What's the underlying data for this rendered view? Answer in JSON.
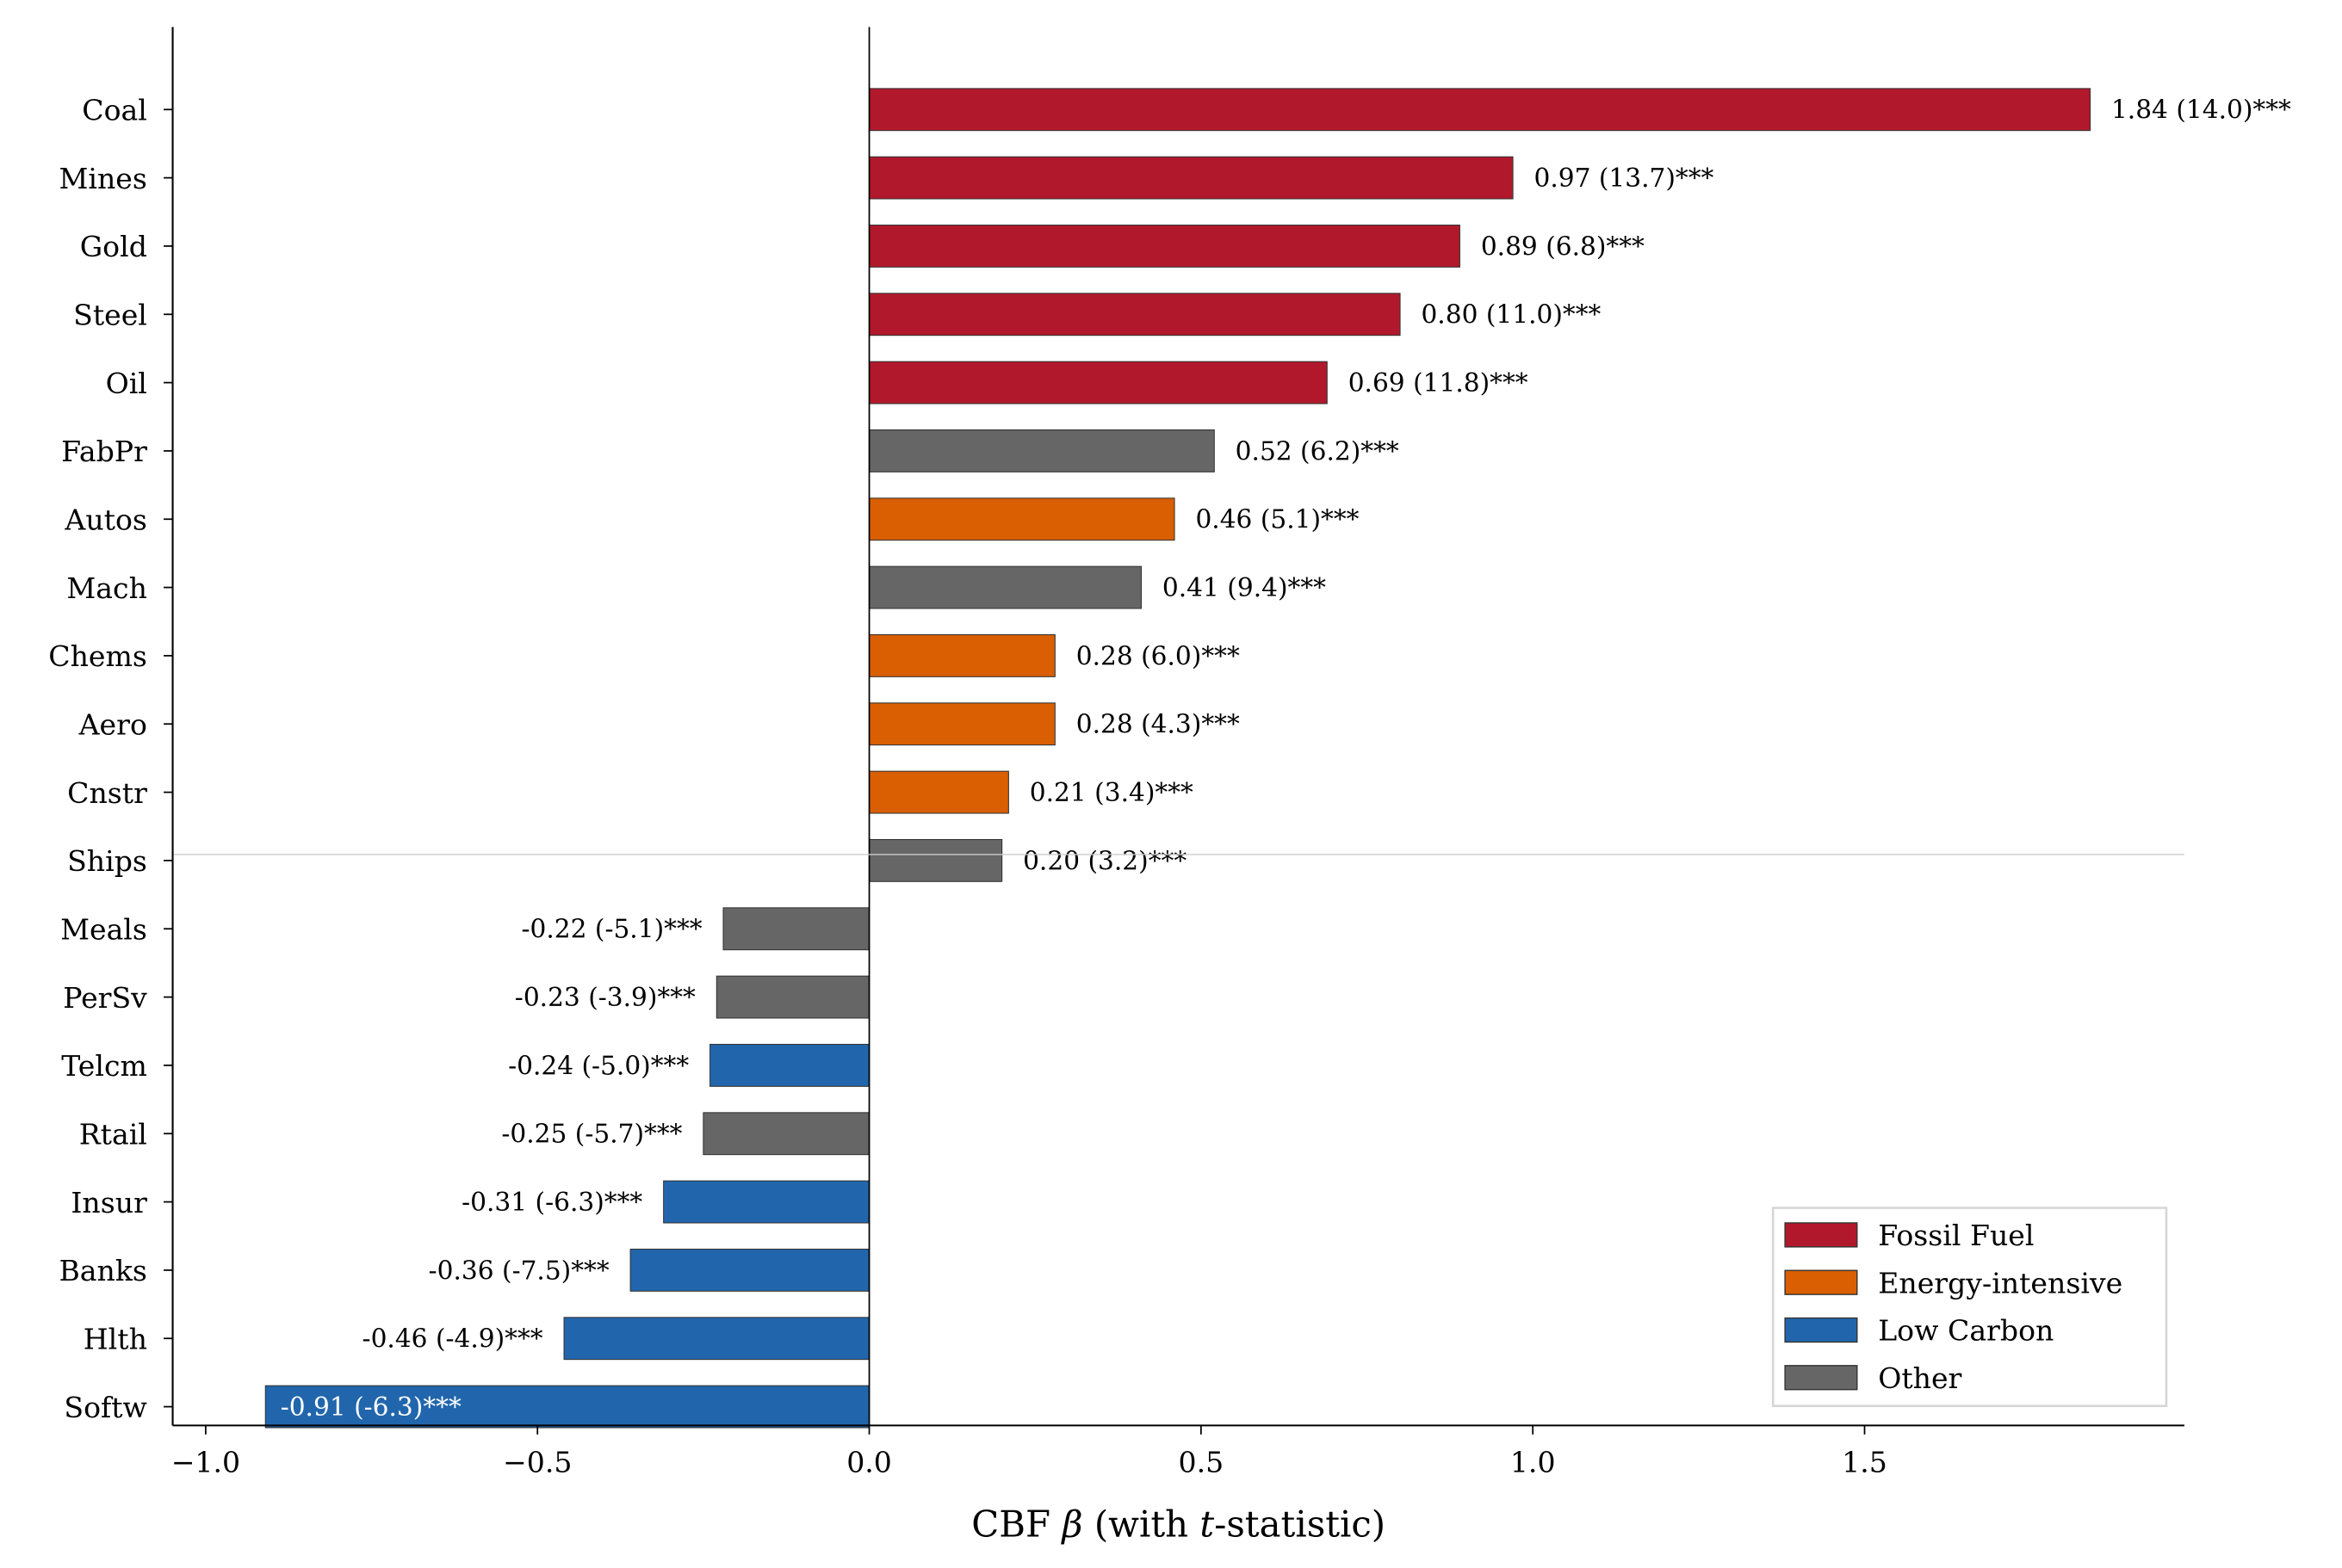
{
  "chart_data": {
    "type": "bar",
    "orientation": "horizontal",
    "title": "",
    "xlabel_parts": [
      "CBF ",
      "β",
      " (with ",
      "t",
      "-statistic)"
    ],
    "ylabel": "",
    "xlim": [
      -1.05,
      1.95
    ],
    "xticks": [
      -1.0,
      -0.5,
      0.0,
      0.5,
      1.0,
      1.5
    ],
    "xtick_labels": [
      "−1.0",
      "−0.5",
      "0.0",
      "0.5",
      "1.0",
      "1.5"
    ],
    "grid": false,
    "legend_position": "bottom-right",
    "categories": [
      "Coal",
      "Mines",
      "Gold",
      "Steel",
      "Oil",
      "FabPr",
      "Autos",
      "Mach",
      "Chems",
      "Aero",
      "Cnstr",
      "Ships",
      "Meals",
      "PerSv",
      "Telcm",
      "Rtail",
      "Insur",
      "Banks",
      "Hlth",
      "Softw"
    ],
    "values": [
      1.84,
      0.97,
      0.89,
      0.8,
      0.69,
      0.52,
      0.46,
      0.41,
      0.28,
      0.28,
      0.21,
      0.2,
      -0.22,
      -0.23,
      -0.24,
      -0.25,
      -0.31,
      -0.36,
      -0.46,
      -0.91
    ],
    "t_stats": [
      14.0,
      13.7,
      6.8,
      11.0,
      11.8,
      6.2,
      5.1,
      9.4,
      6.0,
      4.3,
      3.4,
      3.2,
      -5.1,
      -3.9,
      -5.0,
      -5.7,
      -6.3,
      -7.5,
      -4.9,
      -6.3
    ],
    "groups": [
      "Fossil Fuel",
      "Fossil Fuel",
      "Fossil Fuel",
      "Fossil Fuel",
      "Fossil Fuel",
      "Other",
      "Energy-intensive",
      "Other",
      "Energy-intensive",
      "Energy-intensive",
      "Energy-intensive",
      "Other",
      "Other",
      "Other",
      "Low Carbon",
      "Other",
      "Low Carbon",
      "Low Carbon",
      "Low Carbon",
      "Low Carbon"
    ],
    "data_labels": [
      "1.84 (14.0)***",
      "0.97 (13.7)***",
      "0.89 (6.8)***",
      "0.80 (11.0)***",
      "0.69 (11.8)***",
      "0.52 (6.2)***",
      "0.46 (5.1)***",
      "0.41 (9.4)***",
      "0.28 (6.0)***",
      "0.28 (4.3)***",
      "0.21 (3.4)***",
      "0.20 (3.2)***",
      "-0.22 (-5.1)***",
      "-0.23 (-3.9)***",
      "-0.24 (-5.0)***",
      "-0.25 (-5.7)***",
      "-0.31 (-6.3)***",
      "-0.36 (-7.5)***",
      "-0.46 (-4.9)***",
      "-0.91 (-6.3)***"
    ],
    "legend": [
      {
        "name": "Fossil Fuel",
        "color": "#b2182b"
      },
      {
        "name": "Energy-intensive",
        "color": "#d95f02"
      },
      {
        "name": "Low Carbon",
        "color": "#2166ac"
      },
      {
        "name": "Other",
        "color": "#666666"
      }
    ]
  }
}
